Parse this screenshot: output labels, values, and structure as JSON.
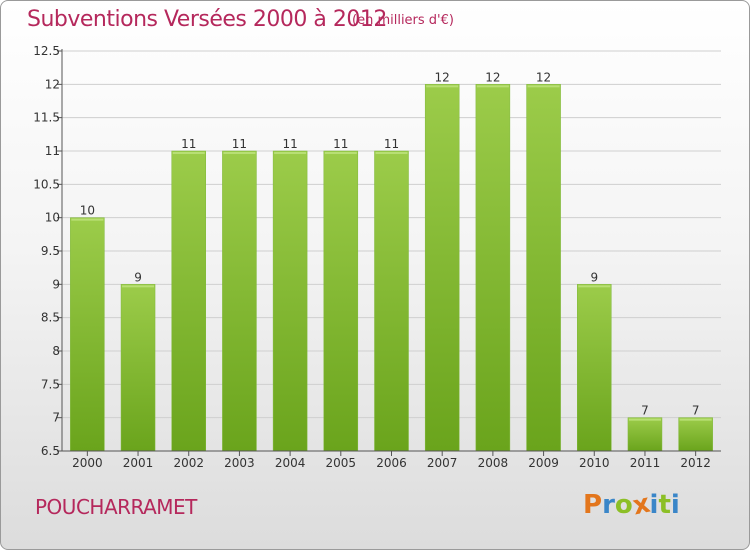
{
  "header": {
    "title": "Subventions Versées 2000 à 2012",
    "unit": "(en milliers d'€)"
  },
  "footer": {
    "commune": "POUCHARRAMET",
    "logo_text": "Proxiti"
  },
  "colors": {
    "title": "#b5285c",
    "bar_light": "#9ccc4a",
    "bar_dark": "#6aa41c",
    "axis": "#555555",
    "grid": "#cfcfcf",
    "logo": [
      "#e3761c",
      "#3a86c8",
      "#8cbf26",
      "#e3761c",
      "#3a86c8",
      "#8cbf26",
      "#3a86c8"
    ]
  },
  "chart_data": {
    "type": "bar",
    "categories": [
      "2000",
      "2001",
      "2002",
      "2003",
      "2004",
      "2005",
      "2006",
      "2007",
      "2008",
      "2009",
      "2010",
      "2011",
      "2012"
    ],
    "values": [
      10,
      9,
      11,
      11,
      11,
      11,
      11,
      12,
      12,
      12,
      9,
      7,
      7
    ],
    "data_labels": [
      "10",
      "9",
      "11",
      "11",
      "11",
      "11",
      "11",
      "12",
      "12",
      "12",
      "9",
      "7",
      "7"
    ],
    "yticks": [
      "6.5",
      "7",
      "7.5",
      "8",
      "8.5",
      "9",
      "9.5",
      "10",
      "10.5",
      "11",
      "11.5",
      "12",
      "12.5"
    ],
    "ylim": [
      6.5,
      12.5
    ],
    "grid": true,
    "xlabel": "",
    "ylabel": ""
  }
}
